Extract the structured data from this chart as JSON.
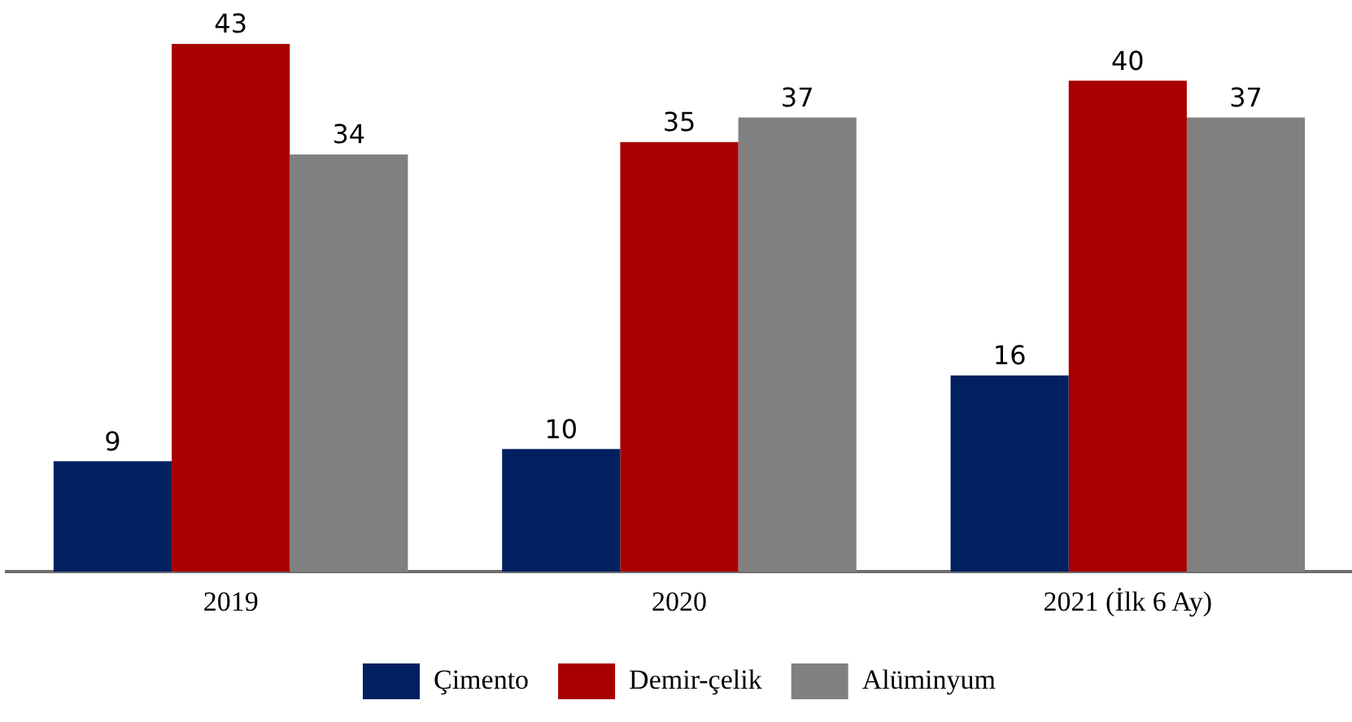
{
  "chart_data": {
    "type": "bar",
    "categories": [
      "2019",
      "2020",
      "2021 (İlk 6 Ay)"
    ],
    "series": [
      {
        "name": "Çimento",
        "color": "#002060",
        "values": [
          9,
          10,
          16
        ]
      },
      {
        "name": "Demir-çelik",
        "color": "#a80000",
        "values": [
          43,
          35,
          40
        ]
      },
      {
        "name": "Alüminyum",
        "color": "#808080",
        "values": [
          34,
          37,
          37
        ]
      }
    ],
    "data_labels": true,
    "legend": "bottom",
    "grid": false,
    "tick_labels": "x"
  }
}
